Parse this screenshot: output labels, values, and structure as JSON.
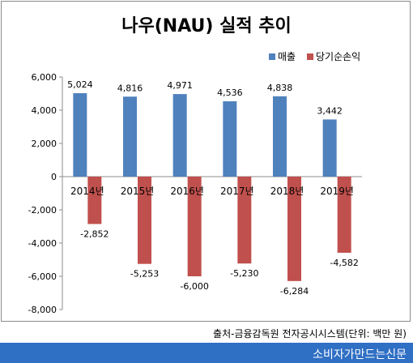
{
  "chart_data": {
    "type": "bar",
    "title": "나우(NAU) 실적 추이",
    "categories": [
      "2014년",
      "2015년",
      "2016년",
      "2017년",
      "2018년",
      "2019년"
    ],
    "series": [
      {
        "name": "매출",
        "color": "#4f81bd",
        "values": [
          5024,
          4816,
          4971,
          4536,
          4838,
          3442
        ]
      },
      {
        "name": "당기순손익",
        "color": "#c0504d",
        "values": [
          -2852,
          -5253,
          -6000,
          -5230,
          -6284,
          -4582
        ]
      }
    ],
    "value_labels": [
      [
        "5,024",
        "4,816",
        "4,971",
        "4,536",
        "4,838",
        "3,442"
      ],
      [
        "-2,852",
        "-5,253",
        "-6,000",
        "-5,230",
        "-6,284",
        "-4,582"
      ]
    ],
    "ylim": [
      -8000,
      6000
    ],
    "yticks": [
      6000,
      4000,
      2000,
      0,
      -2000,
      -4000,
      -6000,
      -8000
    ],
    "ytick_labels": [
      "6,000",
      "4,000",
      "2,000",
      "0",
      "-2,000",
      "-4,000",
      "-6,000",
      "-8,000"
    ],
    "legend_position": "top-right",
    "grid": false
  },
  "source_note": "출처-금융감독원 전자공시시스템(단위: 백만 원)",
  "footer_brand": "소비자가만드는신문"
}
